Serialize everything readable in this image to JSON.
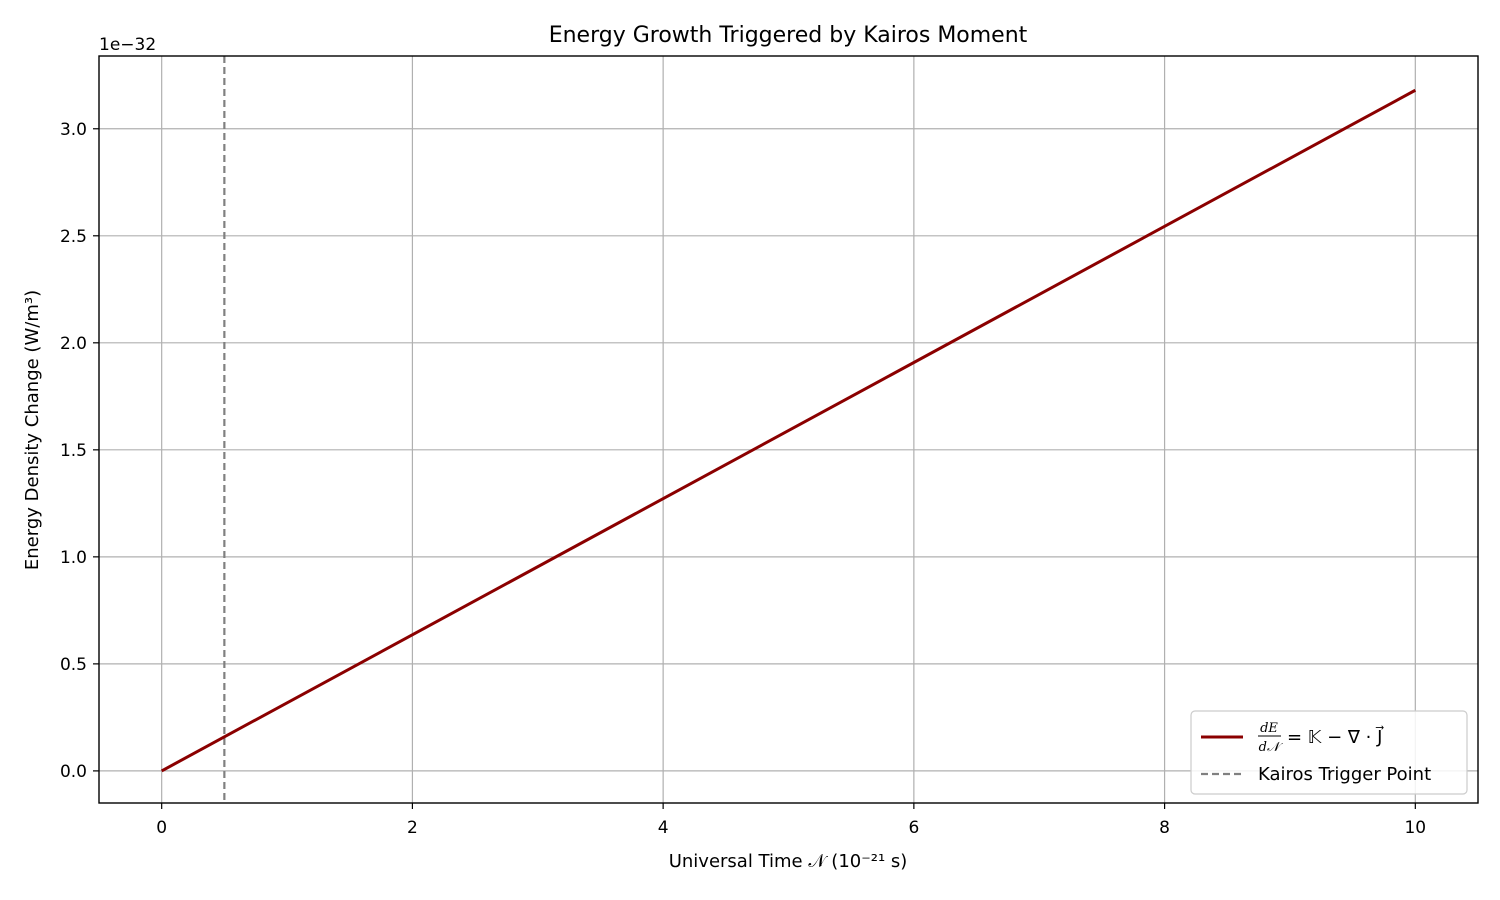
{
  "chart_data": {
    "type": "line",
    "title": "Energy Growth Triggered by Kairos Moment",
    "xlabel": "Universal Time 𝒩 (10⁻²¹ s)",
    "ylabel": "Energy Density Change (W/m³)",
    "y_offset_label": "1e−32",
    "xlim": [
      -0.5,
      10.5
    ],
    "ylim": [
      -0.15,
      3.34
    ],
    "x_ticks": [
      0,
      2,
      4,
      6,
      8,
      10
    ],
    "x_tick_labels": [
      "0",
      "2",
      "4",
      "6",
      "8",
      "10"
    ],
    "y_ticks": [
      0.0,
      0.5,
      1.0,
      1.5,
      2.0,
      2.5,
      3.0
    ],
    "y_tick_labels": [
      "0.0",
      "0.5",
      "1.0",
      "1.5",
      "2.0",
      "2.5",
      "3.0"
    ],
    "grid": true,
    "legend_position": "lower-right",
    "series": [
      {
        "name": "dE/d𝒩 = 𝕂 − ∇·J⃗",
        "style": "solid",
        "color": "#8b0000",
        "x": [
          0,
          10
        ],
        "y": [
          0.0,
          3.18
        ]
      }
    ],
    "vlines": [
      {
        "name": "Kairos Trigger Point",
        "x": 0.5,
        "style": "dashed",
        "color": "#808080"
      }
    ],
    "legend": {
      "entry1_num": "dE",
      "entry1_den": "d𝒩",
      "entry1_rhs": "= 𝕂 − ∇ · J⃗",
      "entry2": "Kairos Trigger Point"
    }
  }
}
